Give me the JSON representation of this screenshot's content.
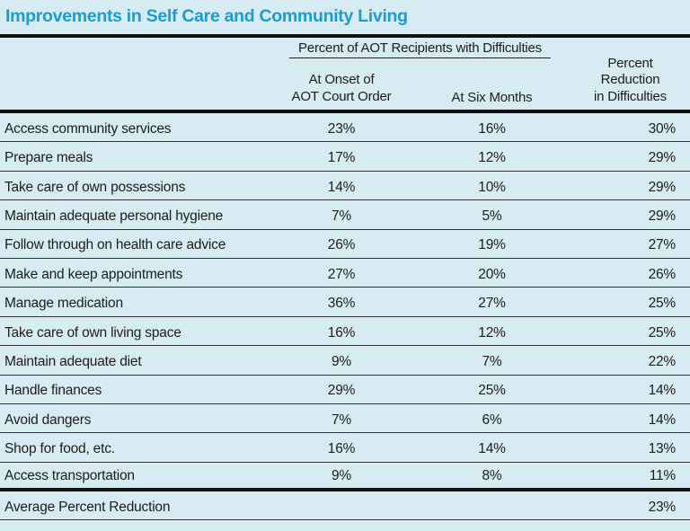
{
  "title": "Improvements in Self Care and Community Living",
  "table": {
    "group_header": "Percent of AOT Recipients with Difficulties",
    "col_headers": {
      "onset_line1": "At Onset of",
      "onset_line2": "AOT Court Order",
      "six_months": "At Six Months",
      "reduction_line1": "Percent",
      "reduction_line2": "Reduction",
      "reduction_line3": "in Difficulties"
    },
    "rows": [
      {
        "label": "Access community services",
        "onset": "23%",
        "six_months": "16%",
        "reduction": "30%"
      },
      {
        "label": "Prepare meals",
        "onset": "17%",
        "six_months": "12%",
        "reduction": "29%"
      },
      {
        "label": "Take care of own possessions",
        "onset": "14%",
        "six_months": "10%",
        "reduction": "29%"
      },
      {
        "label": "Maintain adequate personal hygiene",
        "onset": "7%",
        "six_months": "5%",
        "reduction": "29%"
      },
      {
        "label": "Follow through on health care advice",
        "onset": "26%",
        "six_months": "19%",
        "reduction": "27%"
      },
      {
        "label": "Make and keep appointments",
        "onset": "27%",
        "six_months": "20%",
        "reduction": "26%"
      },
      {
        "label": "Manage medication",
        "onset": "36%",
        "six_months": "27%",
        "reduction": "25%"
      },
      {
        "label": "Take care of own living space",
        "onset": "16%",
        "six_months": "12%",
        "reduction": "25%"
      },
      {
        "label": "Maintain adequate diet",
        "onset": "9%",
        "six_months": "7%",
        "reduction": "22%"
      },
      {
        "label": "Handle finances",
        "onset": "29%",
        "six_months": "25%",
        "reduction": "14%"
      },
      {
        "label": "Avoid dangers",
        "onset": "7%",
        "six_months": "6%",
        "reduction": "14%"
      },
      {
        "label": "Shop for food, etc.",
        "onset": "16%",
        "six_months": "14%",
        "reduction": "13%"
      },
      {
        "label": "Access transportation",
        "onset": "9%",
        "six_months": "8%",
        "reduction": "11%"
      }
    ],
    "footer": {
      "label": "Average Percent Reduction",
      "reduction": "23%"
    }
  },
  "colors": {
    "background": "#d6ebf2",
    "title": "#1a9cd6",
    "text": "#1d1d1d",
    "thin_rule": "#333333",
    "thick_rule": "#121212"
  },
  "chart_data": {
    "type": "table",
    "title": "Improvements in Self Care and Community Living",
    "column_group": "Percent of AOT Recipients with Difficulties",
    "columns": [
      "At Onset of AOT Court Order",
      "At Six Months",
      "Percent Reduction in Difficulties"
    ],
    "rows": [
      {
        "label": "Access community services",
        "values": [
          23,
          16,
          30
        ]
      },
      {
        "label": "Prepare meals",
        "values": [
          17,
          12,
          29
        ]
      },
      {
        "label": "Take care of own possessions",
        "values": [
          14,
          10,
          29
        ]
      },
      {
        "label": "Maintain adequate personal hygiene",
        "values": [
          7,
          5,
          29
        ]
      },
      {
        "label": "Follow through on health care advice",
        "values": [
          26,
          19,
          27
        ]
      },
      {
        "label": "Make and keep appointments",
        "values": [
          27,
          20,
          26
        ]
      },
      {
        "label": "Manage medication",
        "values": [
          36,
          27,
          25
        ]
      },
      {
        "label": "Take care of own living space",
        "values": [
          16,
          12,
          25
        ]
      },
      {
        "label": "Maintain adequate diet",
        "values": [
          9,
          7,
          22
        ]
      },
      {
        "label": "Handle finances",
        "values": [
          29,
          25,
          14
        ]
      },
      {
        "label": "Avoid dangers",
        "values": [
          7,
          6,
          14
        ]
      },
      {
        "label": "Shop for food, etc.",
        "values": [
          16,
          14,
          13
        ]
      },
      {
        "label": "Access transportation",
        "values": [
          9,
          8,
          11
        ]
      }
    ],
    "footer": {
      "label": "Average Percent Reduction",
      "values": [
        null,
        null,
        23
      ]
    },
    "units": "percent"
  }
}
